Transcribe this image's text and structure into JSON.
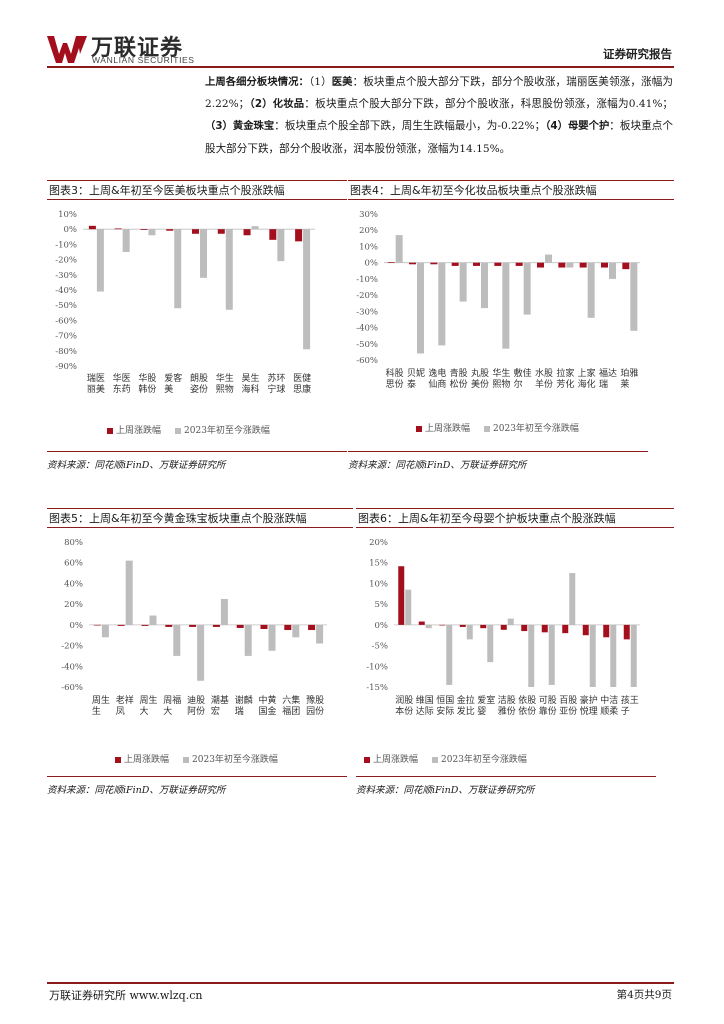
{
  "header": {
    "company_cn": "万联证券",
    "company_en": "WANLIAN SECURITIES",
    "report_type": "证券研究报告"
  },
  "paragraph": {
    "intro": "上周各细分板块情况：",
    "s1_num": "（1）",
    "s1_name": "医美",
    "s1_text": "：板块重点个股大部分下跌，部分个股收涨，瑞丽医美领涨，涨幅为2.22%；",
    "s2_num": "（2）",
    "s2_name": "化妆品",
    "s2_text": "：板块重点个股大部分下跌，部分个股收涨，科思股份领涨，涨幅为0.41%；",
    "s3_num": "（3）",
    "s3_name": "黄金珠宝",
    "s3_text": "：板块重点个股全部下跌，周生生跌幅最小，为-0.22%；",
    "s4_num": "（4）",
    "s4_name": "母婴个护",
    "s4_text": "：板块重点个股大部分下跌，部分个股收涨，润本股份领涨，涨幅为14.15%。"
  },
  "legend": {
    "weekly": "上周涨跌幅",
    "ytd": "2023年初至今涨跌幅"
  },
  "colors": {
    "weekly": "#a30f1d",
    "ytd": "#bdbdbd",
    "accent": "#8b1a1a"
  },
  "figures": [
    {
      "title": "图表3：上周&年初至今医美板块重点个股涨跌幅",
      "source": "资料来源：同花顺iFinD、万联证券研究所"
    },
    {
      "title": "图表4：上周&年初至今化妆品板块重点个股涨跌幅",
      "source": "资料来源：同花顺iFinD、万联证券研究所"
    },
    {
      "title": "图表5：上周&年初至今黄金珠宝板块重点个股涨跌幅",
      "source": "资料来源：同花顺iFinD、万联证券研究所"
    },
    {
      "title": "图表6：上周&年初至今母婴个护板块重点个股涨跌幅",
      "source": "资料来源：同花顺iFinD、万联证券研究所"
    }
  ],
  "chart_data": [
    {
      "type": "bar",
      "categories": [
        "瑞丽医美",
        "华东医药",
        "华韩股份",
        "爱美客",
        "朗姿股份",
        "华熙生物",
        "昊海生科",
        "苏宁环球",
        "医思健康"
      ],
      "series": [
        {
          "name": "上周涨跌幅",
          "values": [
            2.22,
            0.5,
            -0.5,
            -1,
            -3,
            -3,
            -4,
            -7,
            -8
          ]
        },
        {
          "name": "2023年初至今涨跌幅",
          "values": [
            -41,
            -15,
            -4,
            -52,
            -32,
            -53,
            2,
            -21,
            -79
          ]
        }
      ],
      "ylim": [
        -90,
        10
      ],
      "yticks": [
        "10%",
        "0%",
        "-10%",
        "-20%",
        "-30%",
        "-40%",
        "-50%",
        "-60%",
        "-70%",
        "-80%",
        "-90%"
      ]
    },
    {
      "type": "bar",
      "categories": [
        "科思股份",
        "贝泰妮",
        "逸仙电商",
        "青松股份",
        "丸美股份",
        "华熙生物",
        "敷尔佳",
        "水羊股份",
        "拉芳家化",
        "上海家化",
        "福瑞达",
        "珀莱雅"
      ],
      "series": [
        {
          "name": "上周涨跌幅",
          "values": [
            0.41,
            -1,
            -1,
            -2,
            -2,
            -2,
            -2,
            -3,
            -3,
            -3,
            -3,
            -4
          ]
        },
        {
          "name": "2023年初至今涨跌幅",
          "values": [
            17,
            -56,
            -51,
            -24,
            -28,
            -53,
            -32,
            5,
            -3,
            -34,
            -10,
            -42
          ]
        }
      ],
      "ylim": [
        -60,
        30
      ],
      "yticks": [
        "30%",
        "20%",
        "10%",
        "0%",
        "-10%",
        "-20%",
        "-30%",
        "-40%",
        "-50%",
        "-60%"
      ]
    },
    {
      "type": "bar",
      "categories": [
        "周生生",
        "老凤祥",
        "周大生",
        "周大福",
        "迪阿股份",
        "潮宏基",
        "谢瑞麟",
        "中国黄金",
        "六福集团",
        "豫园股份"
      ],
      "series": [
        {
          "name": "上周涨跌幅",
          "values": [
            -0.22,
            -1,
            -1,
            -2,
            -2,
            -2,
            -3,
            -4,
            -5,
            -5
          ]
        },
        {
          "name": "2023年初至今涨跌幅",
          "values": [
            -12,
            62,
            9,
            -30,
            -54,
            25,
            -30,
            -25,
            -12,
            -18
          ]
        }
      ],
      "ylim": [
        -60,
        80
      ],
      "yticks": [
        "80%",
        "60%",
        "40%",
        "20%",
        "0%",
        "-20%",
        "-40%",
        "-60%"
      ]
    },
    {
      "type": "bar",
      "categories": [
        "润本股份",
        "维达国际",
        "恒安国际",
        "金发拉比",
        "爱婴室",
        "洁雅股份",
        "依依股份",
        "可靠股份",
        "百亚股份",
        "豪悦护理",
        "中顺洁柔",
        "孩子王"
      ],
      "series": [
        {
          "name": "上周涨跌幅",
          "values": [
            14.15,
            0.8,
            0,
            -0.5,
            -0.8,
            -1.2,
            -1.5,
            -1.8,
            -2,
            -2.5,
            -3,
            -3.5
          ]
        },
        {
          "name": "2023年初至今涨跌幅",
          "values": [
            8.5,
            -0.8,
            -14.5,
            -3.5,
            -9,
            1.5,
            -15,
            -14.5,
            12.5,
            -15,
            -15,
            -15
          ]
        }
      ],
      "ylim": [
        -15,
        20
      ],
      "yticks": [
        "20%",
        "15%",
        "10%",
        "5%",
        "0%",
        "-5%",
        "-10%",
        "-15%"
      ]
    }
  ],
  "footer": {
    "left": "万联证券研究所 www.wlzq.cn",
    "right": "第4页共9页"
  }
}
